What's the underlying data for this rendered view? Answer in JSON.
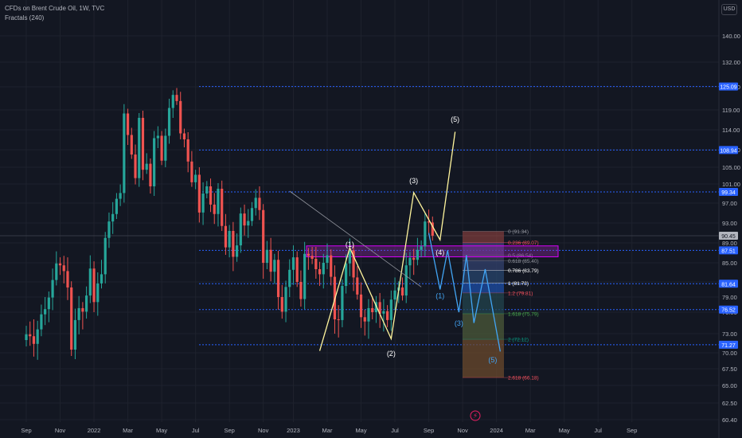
{
  "header": {
    "symbol_line": "CFDs on Brent Crude Oil, 1W, TVC",
    "indicator_line": "Fractals (240)",
    "currency_button": "USD"
  },
  "chart_data": {
    "type": "candlestick",
    "y_axis": {
      "ticks": [
        140.0,
        132.0,
        125.0,
        119.0,
        114.0,
        109.0,
        105.0,
        101.0,
        97.0,
        93.0,
        89.0,
        85.0,
        82.0,
        79.0,
        76.0,
        73.0,
        70.0,
        67.5,
        65.0,
        62.5,
        60.4
      ],
      "tick_labels": [
        "140.00",
        "132.00",
        "125.00",
        "119.00",
        "114.00",
        "109.00",
        "105.00",
        "101.00",
        "97.00",
        "93.00",
        "89.00",
        "85.00",
        "82.00",
        "79.00",
        "76.00",
        "73.00",
        "70.00",
        "67.50",
        "65.00",
        "62.50",
        "60.40"
      ]
    },
    "x_axis": {
      "ticks": [
        {
          "label": "Sep",
          "week": 0
        },
        {
          "label": "Nov",
          "week": 9
        },
        {
          "label": "2022",
          "week": 18
        },
        {
          "label": "Mar",
          "week": 27
        },
        {
          "label": "May",
          "week": 36
        },
        {
          "label": "Jul",
          "week": 45
        },
        {
          "label": "Sep",
          "week": 54
        },
        {
          "label": "Nov",
          "week": 63
        },
        {
          "label": "2023",
          "week": 71
        },
        {
          "label": "Mar",
          "week": 80
        },
        {
          "label": "May",
          "week": 89
        },
        {
          "label": "Jul",
          "week": 98
        },
        {
          "label": "Sep",
          "week": 107
        },
        {
          "label": "Nov",
          "week": 116
        },
        {
          "label": "2024",
          "week": 125
        },
        {
          "label": "Mar",
          "week": 134
        },
        {
          "label": "May",
          "week": 143
        },
        {
          "label": "Jul",
          "week": 152
        },
        {
          "label": "Sep",
          "week": 161
        }
      ]
    },
    "price_levels": [
      {
        "label": "125.09",
        "price": 125.09
      },
      {
        "label": "108.94",
        "price": 108.94
      },
      {
        "label": "99.34",
        "price": 99.34
      },
      {
        "label": "87.51",
        "price": 87.51
      },
      {
        "label": "81.64",
        "price": 81.64
      },
      {
        "label": "76.52",
        "price": 76.52
      },
      {
        "label": "71.27",
        "price": 71.27
      }
    ],
    "current_price": {
      "label": "90.45",
      "price": 90.45
    },
    "candles_weekly_close": [
      72.9,
      72.6,
      71.4,
      73.6,
      75.7,
      76.6,
      78.9,
      82.3,
      84.9,
      84.6,
      83.7,
      80.9,
      70.5,
      74.9,
      76.8,
      76.1,
      79.3,
      84.1,
      78.0,
      81.7,
      83.2,
      90.0,
      93.3,
      94.8,
      97.9,
      99.1,
      118.1,
      112.7,
      107.9,
      102.4,
      117.0,
      104.4,
      105.8,
      100.5,
      111.9,
      112.5,
      106.5,
      112.5,
      119.5,
      122.9,
      121.3,
      113.1,
      111.6,
      106.3,
      101.4,
      103.2,
      95.1,
      99.0,
      100.5,
      96.7,
      94.8,
      100.0,
      92.4,
      88.1,
      91.4,
      86.2,
      88.5,
      94.9,
      92.5,
      93.4,
      96.0,
      98.1,
      95.6,
      85.0,
      87.6,
      83.6,
      85.6,
      79.0,
      76.1,
      81.0,
      83.9,
      86.1,
      82.0,
      78.6,
      86.8,
      86.4,
      85.8,
      84.0,
      83.2,
      85.0,
      86.5,
      82.8,
      75.0,
      74.9,
      81.2,
      84.9,
      87.5,
      82.7,
      79.5,
      75.3,
      74.7,
      76.8,
      76.0,
      78.0,
      75.8,
      76.2,
      74.9,
      78.5,
      80.3,
      80.9,
      79.3,
      84.6,
      86.0,
      85.6,
      87.6,
      88.3,
      93.3,
      93.1,
      90.45
    ],
    "fibonacci": [
      {
        "label": "0 (91.34)",
        "price": 91.34
      },
      {
        "label": "0.236 (89.07)",
        "price": 89.07
      },
      {
        "label": "0.5 (86.54)",
        "price": 86.54
      },
      {
        "label": "0.618 (85.40)",
        "price": 85.4
      },
      {
        "label": "0.786 (83.79)",
        "price": 83.79
      },
      {
        "label": "1 (81.73)",
        "price": 81.73
      },
      {
        "label": "1.2 (79.81)",
        "price": 79.81
      },
      {
        "label": "1.618 (75.79)",
        "price": 75.79
      },
      {
        "label": "2 (72.12)",
        "price": 72.12
      },
      {
        "label": "2.618 (66.18)",
        "price": 66.18
      }
    ],
    "wave_labels_yellow": [
      {
        "label": "(1)",
        "week": 86,
        "price": 88.2
      },
      {
        "label": "(2)",
        "week": 97,
        "price": 69.5
      },
      {
        "label": "(3)",
        "week": 103,
        "price": 101.2
      },
      {
        "label": "(4)",
        "week": 110,
        "price": 86.6
      },
      {
        "label": "(5)",
        "week": 114,
        "price": 116.0
      }
    ],
    "wave_labels_blue": [
      {
        "label": "(1)",
        "week": 110,
        "price": 78.8
      },
      {
        "label": "(3)",
        "week": 115,
        "price": 74.1
      },
      {
        "label": "(5)",
        "week": 124,
        "price": 68.5
      }
    ]
  }
}
